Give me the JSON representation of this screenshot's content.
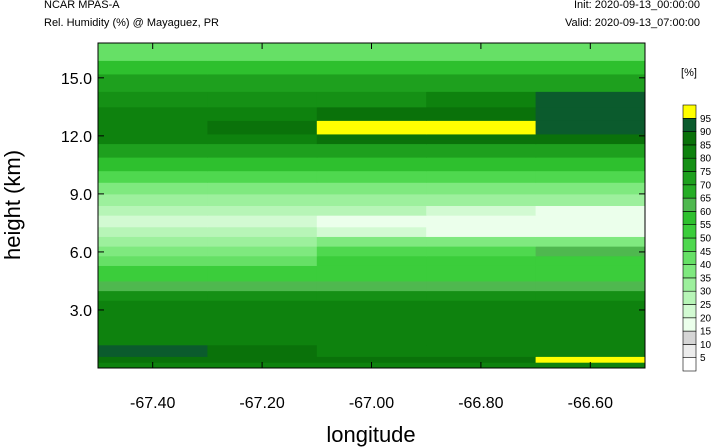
{
  "header": {
    "model": "NCAR MPAS-A",
    "variable": "Rel. Humidity (%) @ Mayaguez, PR",
    "init": "Init: 2020-09-13_00:00:00",
    "valid": "Valid: 2020-09-13_07:00:00"
  },
  "chart_data": {
    "type": "heatmap",
    "title": "Rel. Humidity (%) @ Mayaguez, PR",
    "xlabel": "longitude",
    "ylabel": "height (km)",
    "xlim": [
      -67.5,
      -66.5
    ],
    "ylim": [
      0,
      16.8
    ],
    "x_ticks": [
      -67.4,
      -67.2,
      -67.0,
      -66.8,
      -66.6
    ],
    "x_tick_labels": [
      "-67.40",
      "-67.20",
      "-67.00",
      "-66.80",
      "-66.60"
    ],
    "y_ticks": [
      3.0,
      6.0,
      9.0,
      12.0,
      15.0
    ],
    "y_tick_labels": [
      "3.0",
      "6.0",
      "9.0",
      "12.0",
      "15.0"
    ],
    "colorbar": {
      "unit": "[%]",
      "levels": [
        5,
        10,
        15,
        20,
        25,
        30,
        35,
        40,
        45,
        50,
        55,
        60,
        65,
        70,
        75,
        80,
        85,
        90,
        95
      ],
      "level_labels": [
        "5",
        "10",
        "15",
        "20",
        "25",
        "30",
        "35",
        "40",
        "45",
        "50",
        "55",
        "60",
        "65",
        "70",
        "75",
        "80",
        "85",
        "90",
        "95"
      ],
      "colors": [
        "#ffffff",
        "#ececec",
        "#d5d5d5",
        "#ebffeb",
        "#d2fad2",
        "#b7f5b7",
        "#9df09d",
        "#7fe97f",
        "#66e066",
        "#4fd84f",
        "#3bcd3b",
        "#2ec02e",
        "#4fb84f",
        "#26ad26",
        "#1ea01e",
        "#159015",
        "#0e820e",
        "#0a720a",
        "#0b5b2d",
        "#ffff00"
      ]
    },
    "field": {
      "columns": [
        "-67.50",
        "-67.25",
        "-67.00",
        "-66.75",
        "-66.50"
      ],
      "bands": [
        {
          "height_km": [
            0.0,
            0.3
          ],
          "rh_pct": [
            80,
            80,
            80,
            80,
            80
          ]
        },
        {
          "height_km": [
            0.3,
            0.6
          ],
          "rh_pct": [
            85,
            85,
            85,
            85,
            95
          ]
        },
        {
          "height_km": [
            0.6,
            1.2
          ],
          "rh_pct": [
            90,
            85,
            80,
            80,
            80
          ]
        },
        {
          "height_km": [
            1.2,
            3.5
          ],
          "rh_pct": [
            80,
            80,
            80,
            80,
            80
          ]
        },
        {
          "height_km": [
            3.5,
            4.0
          ],
          "rh_pct": [
            75,
            75,
            75,
            75,
            75
          ]
        },
        {
          "height_km": [
            4.0,
            4.5
          ],
          "rh_pct": [
            60,
            60,
            60,
            60,
            60
          ]
        },
        {
          "height_km": [
            4.5,
            5.3
          ],
          "rh_pct": [
            50,
            50,
            50,
            50,
            50
          ]
        },
        {
          "height_km": [
            5.3,
            5.8
          ],
          "rh_pct": [
            40,
            40,
            50,
            50,
            50
          ]
        },
        {
          "height_km": [
            5.8,
            6.3
          ],
          "rh_pct": [
            35,
            35,
            45,
            45,
            60
          ]
        },
        {
          "height_km": [
            6.3,
            6.8
          ],
          "rh_pct": [
            30,
            30,
            35,
            35,
            35
          ]
        },
        {
          "height_km": [
            6.8,
            7.3
          ],
          "rh_pct": [
            25,
            25,
            20,
            15,
            15
          ]
        },
        {
          "height_km": [
            7.3,
            7.9
          ],
          "rh_pct": [
            20,
            20,
            15,
            15,
            15
          ]
        },
        {
          "height_km": [
            7.9,
            8.4
          ],
          "rh_pct": [
            25,
            25,
            25,
            20,
            15
          ]
        },
        {
          "height_km": [
            8.4,
            9.0
          ],
          "rh_pct": [
            30,
            30,
            30,
            30,
            30
          ]
        },
        {
          "height_km": [
            9.0,
            9.6
          ],
          "rh_pct": [
            35,
            35,
            35,
            35,
            35
          ]
        },
        {
          "height_km": [
            9.6,
            10.2
          ],
          "rh_pct": [
            45,
            45,
            45,
            45,
            45
          ]
        },
        {
          "height_km": [
            10.2,
            10.9
          ],
          "rh_pct": [
            55,
            55,
            55,
            55,
            55
          ]
        },
        {
          "height_km": [
            10.9,
            11.6
          ],
          "rh_pct": [
            70,
            70,
            70,
            70,
            70
          ]
        },
        {
          "height_km": [
            11.6,
            12.1
          ],
          "rh_pct": [
            80,
            80,
            85,
            85,
            85
          ]
        },
        {
          "height_km": [
            12.1,
            12.8
          ],
          "rh_pct": [
            80,
            85,
            95,
            95,
            90
          ]
        },
        {
          "height_km": [
            12.8,
            13.5
          ],
          "rh_pct": [
            80,
            80,
            85,
            85,
            90
          ]
        },
        {
          "height_km": [
            13.5,
            14.3
          ],
          "rh_pct": [
            75,
            75,
            75,
            80,
            90
          ]
        },
        {
          "height_km": [
            14.3,
            15.2
          ],
          "rh_pct": [
            70,
            70,
            70,
            70,
            70
          ]
        },
        {
          "height_km": [
            15.2,
            15.9
          ],
          "rh_pct": [
            55,
            55,
            55,
            55,
            55
          ]
        },
        {
          "height_km": [
            15.9,
            16.8
          ],
          "rh_pct": [
            40,
            40,
            40,
            40,
            40
          ]
        }
      ]
    }
  }
}
